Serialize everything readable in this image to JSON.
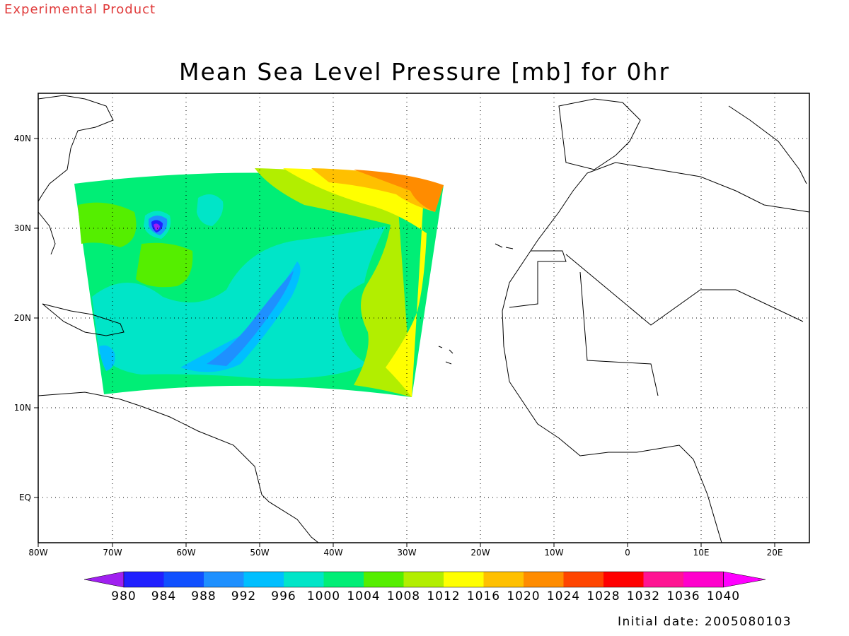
{
  "watermark": "Experimental Product",
  "title": "Mean Sea Level Pressure [mb] for 0hr",
  "initial_date": {
    "label": "Initial date:",
    "value": "2005080103"
  },
  "map": {
    "projection": "lat-lon",
    "lon_range": [
      -80,
      25
    ],
    "lat_range": [
      -6,
      44
    ],
    "grid": "dotted",
    "lat_ticks": [
      {
        "value": 40,
        "label": "40N"
      },
      {
        "value": 30,
        "label": "30N"
      },
      {
        "value": 20,
        "label": "20N"
      },
      {
        "value": 10,
        "label": "10N"
      },
      {
        "value": 0,
        "label": "EQ"
      }
    ],
    "lon_ticks": [
      {
        "value": -80,
        "label": "80W"
      },
      {
        "value": -70,
        "label": "70W"
      },
      {
        "value": -60,
        "label": "60W"
      },
      {
        "value": -50,
        "label": "50W"
      },
      {
        "value": -40,
        "label": "40W"
      },
      {
        "value": -30,
        "label": "30W"
      },
      {
        "value": -20,
        "label": "20W"
      },
      {
        "value": -10,
        "label": "10W"
      },
      {
        "value": 0,
        "label": "0"
      },
      {
        "value": 10,
        "label": "10E"
      },
      {
        "value": 20,
        "label": "20E"
      }
    ],
    "field_domain": {
      "top_left": [
        -75,
        35
      ],
      "top_right": [
        -25,
        35
      ],
      "bottom_left": [
        -71,
        12
      ],
      "bottom_right": [
        -29,
        12
      ]
    },
    "pressure_features": [
      {
        "type": "low-center",
        "lon": -64,
        "lat": 30,
        "value": 988
      },
      {
        "type": "trough-axis",
        "from": [
          -57,
          15
        ],
        "to": [
          -44,
          26
        ],
        "value": 992
      },
      {
        "type": "high-ridge",
        "lon": -28,
        "lat": 33,
        "value": 1020
      }
    ]
  },
  "colorbar": {
    "levels": [
      "980",
      "984",
      "988",
      "992",
      "996",
      "1000",
      "1004",
      "1008",
      "1012",
      "1016",
      "1020",
      "1024",
      "1028",
      "1032",
      "1036",
      "1040"
    ],
    "colors": [
      "#a020f0",
      "#2020ff",
      "#1050ff",
      "#1e90ff",
      "#00bfff",
      "#00e5c8",
      "#00ee76",
      "#55ee00",
      "#b2ee00",
      "#ffff00",
      "#ffc000",
      "#ff8c00",
      "#ff4500",
      "#ff0000",
      "#ff1493",
      "#ff00cc",
      "#ff00ff"
    ]
  }
}
